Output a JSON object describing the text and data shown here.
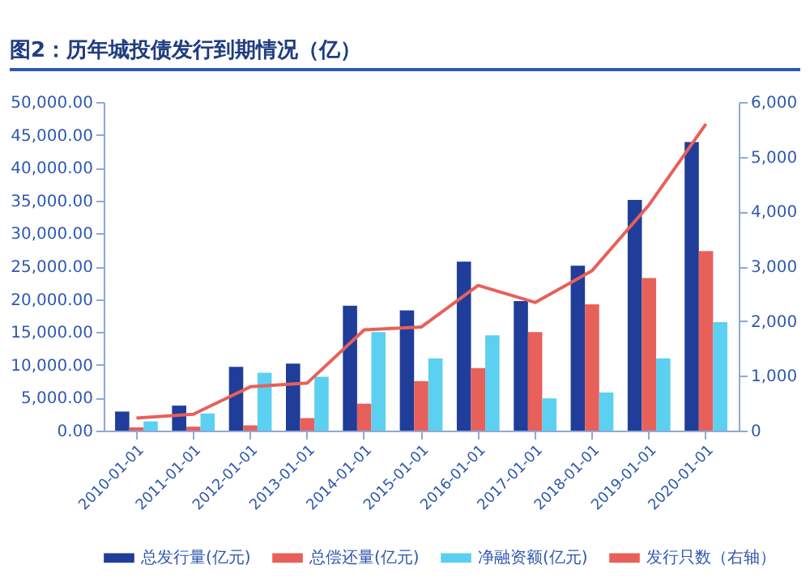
{
  "chart_data": {
    "type": "bar",
    "title": "图2：历年城投债发行到期情况（亿）",
    "categories": [
      "2010-01-01",
      "2011-01-01",
      "2012-01-01",
      "2013-01-01",
      "2014-01-01",
      "2015-01-01",
      "2016-01-01",
      "2017-01-01",
      "2018-01-01",
      "2019-01-01",
      "2020-01-01"
    ],
    "series": [
      {
        "name": "总发行量(亿元)",
        "color": "#1f3d99",
        "values": [
          2900,
          3800,
          9700,
          10200,
          19000,
          18300,
          25700,
          19700,
          25100,
          35100,
          43900
        ]
      },
      {
        "name": "总偿还量(亿元)",
        "color": "#e8605a",
        "values": [
          500,
          600,
          800,
          1900,
          4100,
          7500,
          9500,
          15000,
          19200,
          23200,
          27300
        ]
      },
      {
        "name": "净融资额(亿元)",
        "color": "#5bd0f0",
        "values": [
          1400,
          2600,
          8800,
          8200,
          15000,
          11000,
          14500,
          4900,
          5800,
          11000,
          16500
        ]
      },
      {
        "name": "发行只数（右轴）",
        "type": "line",
        "axis": "y2",
        "color": "#e8605a",
        "values": [
          230,
          300,
          800,
          870,
          1840,
          1890,
          2650,
          2340,
          2920,
          4120,
          5600
        ]
      }
    ],
    "ylim": [
      0,
      50000
    ],
    "yticks": [
      {
        "value": 0,
        "label": "0.00"
      },
      {
        "value": 5000,
        "label": "5,000.00"
      },
      {
        "value": 10000,
        "label": "10,000.00"
      },
      {
        "value": 15000,
        "label": "15,000.00"
      },
      {
        "value": 20000,
        "label": "20,000.00"
      },
      {
        "value": 25000,
        "label": "25,000.00"
      },
      {
        "value": 30000,
        "label": "30,000.00"
      },
      {
        "value": 35000,
        "label": "35,000.00"
      },
      {
        "value": 40000,
        "label": "40,000.00"
      },
      {
        "value": 45000,
        "label": "45,000.00"
      },
      {
        "value": 50000,
        "label": "50,000.00"
      }
    ],
    "y2lim": [
      0,
      6000
    ],
    "y2ticks": [
      {
        "value": 0,
        "label": "0"
      },
      {
        "value": 1000,
        "label": "1,000"
      },
      {
        "value": 2000,
        "label": "2,000"
      },
      {
        "value": 3000,
        "label": "3,000"
      },
      {
        "value": 4000,
        "label": "4,000"
      },
      {
        "value": 5000,
        "label": "5,000"
      },
      {
        "value": 6000,
        "label": "6,000"
      }
    ],
    "legend": "bottom",
    "grid": false
  }
}
